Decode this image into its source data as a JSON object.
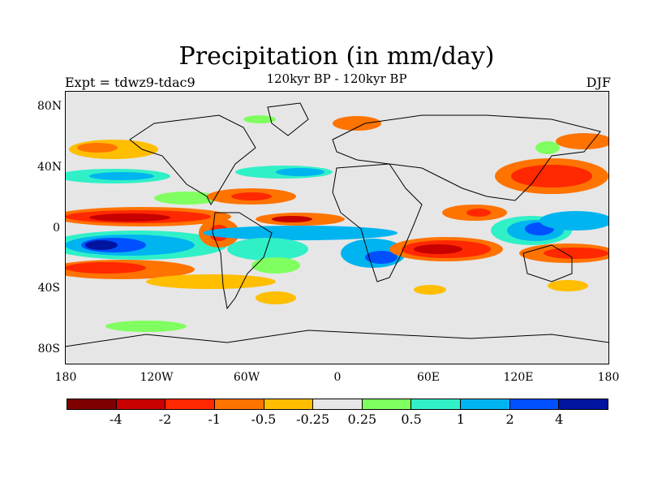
{
  "title": "Precipitation (in mm/day)",
  "subtitle": "120kyr BP - 120kyr BP",
  "experiment_label": "Expt = tdwz9-tdac9",
  "season_label": "DJF",
  "lat_labels": [
    "80N",
    "40N",
    "0",
    "40S",
    "80S"
  ],
  "lon_labels": [
    "180",
    "120W",
    "60W",
    "0",
    "60E",
    "120E",
    "180"
  ],
  "colorbar": {
    "colors": [
      "#7f0000",
      "#c80000",
      "#ff2800",
      "#ff7300",
      "#ffbe00",
      "#e6e6e6",
      "#80ff60",
      "#30f0c8",
      "#00b4f0",
      "#0050ff",
      "#0014a0"
    ],
    "labels": [
      "-4",
      "-2",
      "-1",
      "-0.5",
      "-0.25",
      "0.25",
      "0.5",
      "1",
      "2",
      "4"
    ]
  }
}
